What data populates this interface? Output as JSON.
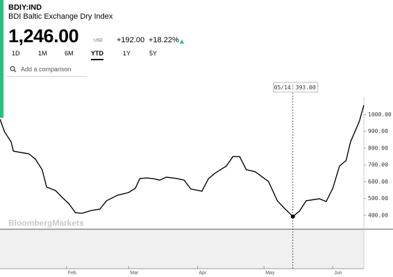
{
  "ticker": "BDIY:IND",
  "name": "BDI Baltic Exchange Dry Index",
  "price": "1,246.00",
  "currency": "USD",
  "change": "+192.00",
  "change_pct": "+18.22%",
  "ranges": [
    "1D",
    "1M",
    "6M",
    "YTD",
    "1Y",
    "5Y"
  ],
  "active_range": "YTD",
  "compare_placeholder": "Add a comparison",
  "watermark": "BloombergMarkets",
  "tooltip": {
    "date": "05/14",
    "value": "393.00"
  },
  "chart_data": {
    "type": "line",
    "x": [
      2,
      4,
      7,
      8,
      11,
      15,
      18,
      21,
      23,
      27,
      30,
      33,
      36,
      39,
      43,
      47,
      50,
      55,
      60,
      63,
      65,
      68,
      71,
      74,
      77,
      82,
      85,
      88,
      93,
      96,
      99,
      104,
      107,
      110,
      113,
      117,
      123,
      127,
      130,
      134,
      137,
      140,
      146,
      149,
      152,
      155,
      158,
      160,
      162,
      164,
      166
    ],
    "series": [
      {
        "name": "BDIY:IND",
        "color": "#000000",
        "values": [
          973,
          899,
          837,
          783,
          775,
          767,
          734,
          672,
          569,
          548,
          507,
          470,
          416,
          412,
          429,
          437,
          487,
          520,
          536,
          561,
          619,
          623,
          619,
          610,
          627,
          619,
          610,
          557,
          544,
          619,
          652,
          693,
          750,
          750,
          672,
          660,
          602,
          487,
          445,
          393,
          425,
          487,
          499,
          482,
          561,
          693,
          726,
          837,
          899,
          961,
          1056
        ]
      }
    ],
    "xlim": [
      2,
      166
    ],
    "xticks": [
      {
        "value": 32,
        "label": "Feb"
      },
      {
        "value": 60,
        "label": "Mar"
      },
      {
        "value": 91,
        "label": "Apr"
      },
      {
        "value": 121,
        "label": "May"
      },
      {
        "value": 152,
        "label": "Jun"
      }
    ],
    "ylim": [
      317.5,
      1105
    ],
    "yticks": [
      {
        "value": 400,
        "label": "400.00"
      },
      {
        "value": 500,
        "label": "500.00"
      },
      {
        "value": 600,
        "label": "600.00"
      },
      {
        "value": 700,
        "label": "700.00"
      },
      {
        "value": 800,
        "label": "800.00"
      },
      {
        "value": 900,
        "label": "900.00"
      },
      {
        "value": 1000,
        "label": "1000.00"
      }
    ]
  }
}
